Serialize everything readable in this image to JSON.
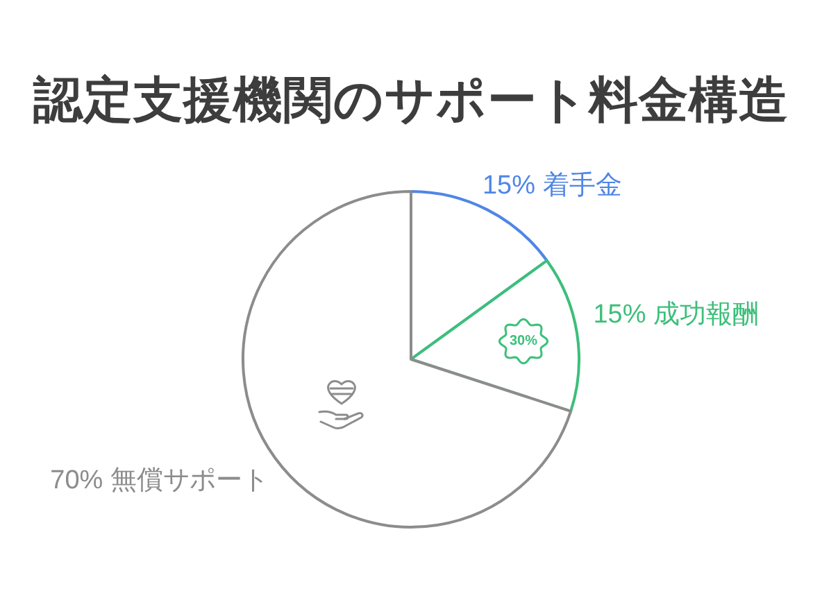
{
  "chart_data": {
    "type": "pie",
    "title": "認定支援機関のサポート料金構造",
    "categories": [
      "着手金",
      "成功報酬",
      "無償サポート"
    ],
    "values": [
      15,
      15,
      70
    ],
    "colors": [
      "#4f86e6",
      "#3cbf7a",
      "#8c8c8c"
    ],
    "value_labels": [
      "15%",
      "15%",
      "70%"
    ],
    "legend": false,
    "annotations": [
      "30%"
    ]
  }
}
